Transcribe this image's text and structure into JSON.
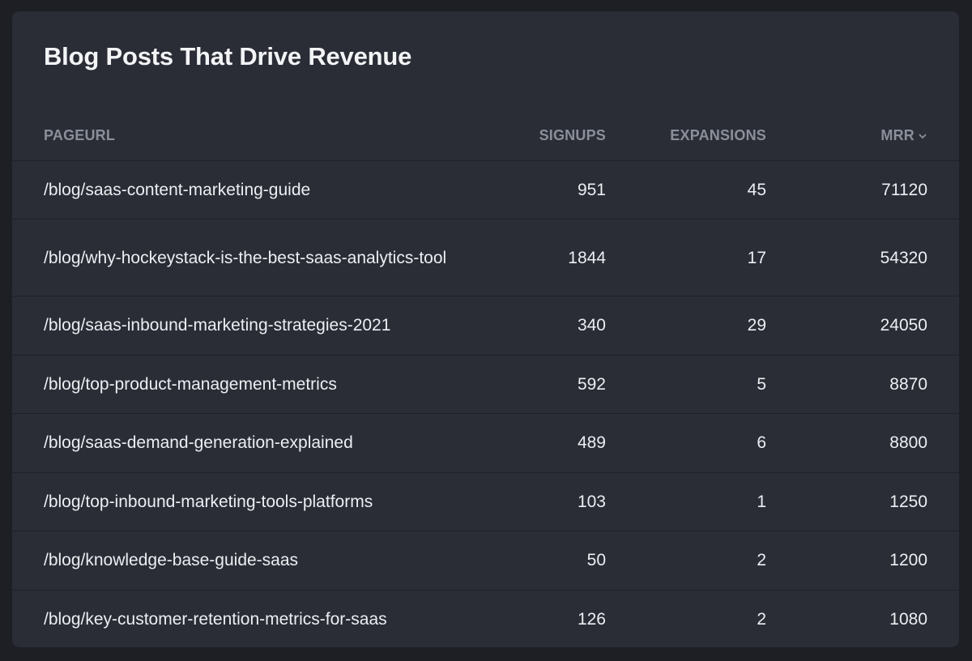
{
  "title": "Blog Posts That Drive Revenue",
  "columns": {
    "pageurl": "PAGEURL",
    "signups": "SIGNUPS",
    "expansions": "EXPANSIONS",
    "mrr": "MRR"
  },
  "sort_icon": "chevron-down-icon",
  "rows": [
    {
      "pageurl": "/blog/saas-content-marketing-guide",
      "signups": "951",
      "expansions": "45",
      "mrr": "71120"
    },
    {
      "pageurl": "/blog/why-hockeystack-is-the-best-saas-analytics-tool",
      "signups": "1844",
      "expansions": "17",
      "mrr": "54320"
    },
    {
      "pageurl": "/blog/saas-inbound-marketing-strategies-2021",
      "signups": "340",
      "expansions": "29",
      "mrr": "24050"
    },
    {
      "pageurl": "/blog/top-product-management-metrics",
      "signups": "592",
      "expansions": "5",
      "mrr": "8870"
    },
    {
      "pageurl": "/blog/saas-demand-generation-explained",
      "signups": "489",
      "expansions": "6",
      "mrr": "8800"
    },
    {
      "pageurl": "/blog/top-inbound-marketing-tools-platforms",
      "signups": "103",
      "expansions": "1",
      "mrr": "1250"
    },
    {
      "pageurl": "/blog/knowledge-base-guide-saas",
      "signups": "50",
      "expansions": "2",
      "mrr": "1200"
    },
    {
      "pageurl": "/blog/key-customer-retention-metrics-for-saas",
      "signups": "126",
      "expansions": "2",
      "mrr": "1080"
    }
  ]
}
